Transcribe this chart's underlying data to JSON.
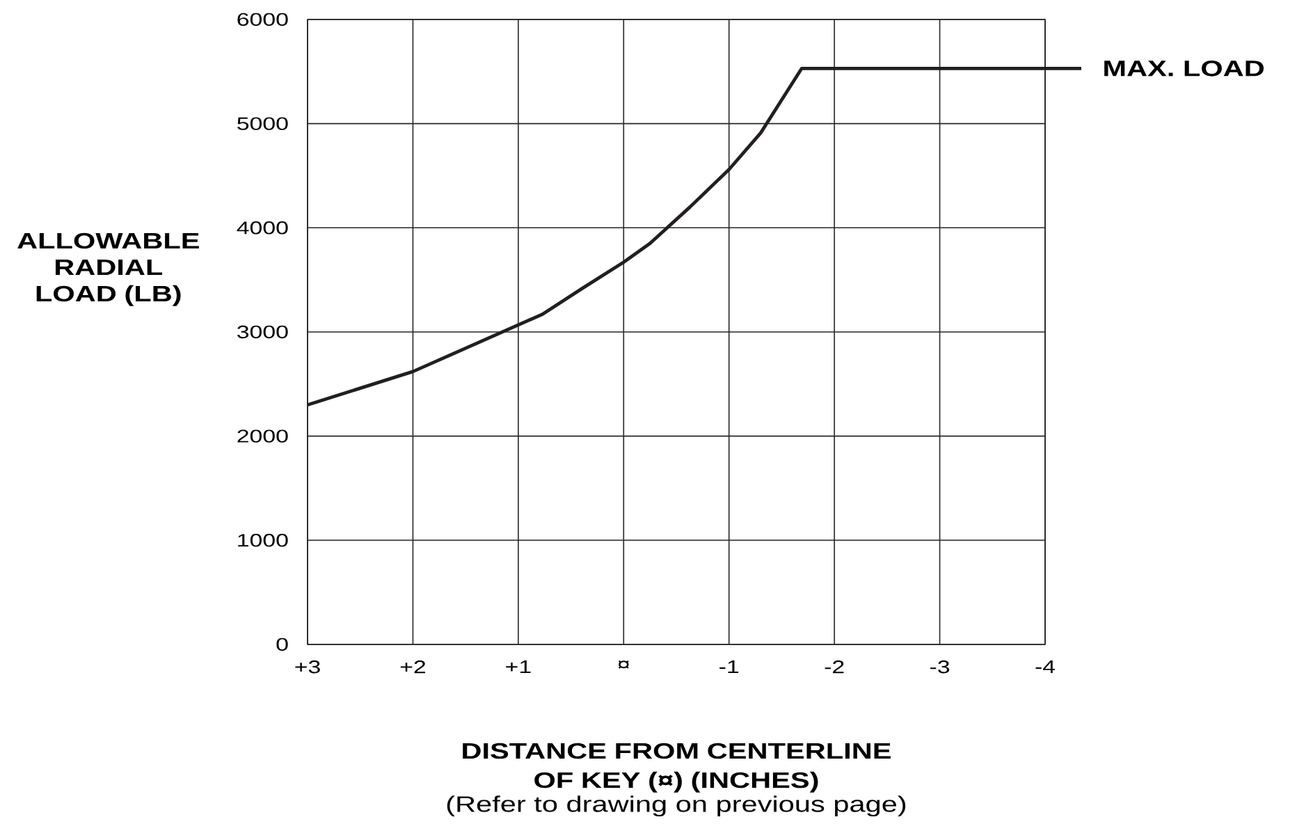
{
  "chart_data": {
    "type": "line",
    "xlabel": "DISTANCE FROM CENTERLINE OF KEY (¤) (INCHES)",
    "ylabel": "ALLOWABLE RADIAL LOAD (LB)",
    "annotations": [
      "MAX. LOAD",
      "(Refer to drawing on previous page)"
    ],
    "x": [
      3,
      2,
      0.77,
      0.39,
      0,
      -0.25,
      -0.63,
      -1,
      -1.3,
      -1.69,
      -4
    ],
    "values": [
      2300,
      2620,
      3170,
      3420,
      3670,
      3850,
      4200,
      4560,
      4910,
      5530,
      5530
    ],
    "color": "#231f20",
    "xlim": [
      3,
      -4
    ],
    "ylim": [
      0,
      6000
    ],
    "xticks": [
      {
        "value": 3,
        "label": "+3"
      },
      {
        "value": 2,
        "label": "+2"
      },
      {
        "value": 1,
        "label": "+1"
      },
      {
        "value": 0,
        "label": "¤"
      },
      -1,
      -2,
      -3,
      -4
    ],
    "yticks": [
      0,
      1000,
      2000,
      3000,
      4000,
      5000,
      6000
    ],
    "grid": true
  }
}
